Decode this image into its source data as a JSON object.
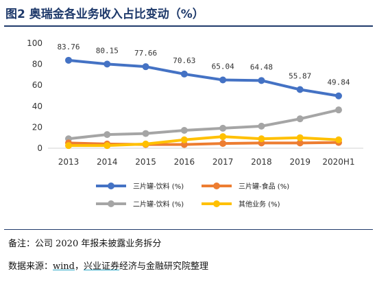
{
  "header": {
    "title": "图2 奥瑞金各业务收入占比变动（%）"
  },
  "footer": {
    "note": "备注：公司 2020 年报未披露业务拆分",
    "source_prefix": "数据来源：",
    "source_wind": "wind",
    "source_sep": "，",
    "source_org": "兴业证券",
    "source_rest": "经济与金融研究院整理"
  },
  "chart_data": {
    "type": "line",
    "categories": [
      "2013",
      "2014",
      "2015",
      "2016",
      "2017",
      "2018",
      "2019",
      "2020H1"
    ],
    "ylim": [
      0,
      100
    ],
    "yticks": [
      0,
      20,
      40,
      60,
      80,
      100
    ],
    "grid": false,
    "legend_position": "bottom",
    "series": [
      {
        "name": "三片罐-饮料 (%)",
        "color": "#4472c4",
        "values": [
          83.76,
          80.15,
          77.66,
          70.63,
          65.04,
          64.48,
          55.87,
          49.84
        ],
        "labels": [
          "83.76",
          "80.15",
          "77.66",
          "70.63",
          "65.04",
          "64.48",
          "55.87",
          "49.84"
        ]
      },
      {
        "name": "三片罐-食品 (%)",
        "color": "#ed7d31",
        "values": [
          5,
          4,
          3.5,
          3.5,
          4.5,
          5,
          5,
          5.5
        ]
      },
      {
        "name": "二片罐-饮料 (%)",
        "color": "#a5a5a5",
        "values": [
          9,
          13,
          14,
          17,
          19,
          21,
          28,
          36.5
        ]
      },
      {
        "name": "其他业务 (%)",
        "color": "#ffc000",
        "values": [
          2.5,
          2.5,
          4,
          8,
          11,
          9,
          10,
          8
        ]
      }
    ]
  }
}
